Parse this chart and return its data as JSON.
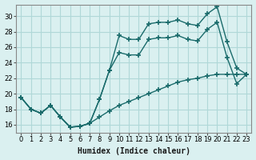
{
  "xlabel": "Humidex (Indice chaleur)",
  "ylabel": "",
  "bg_color": "#daf0f0",
  "line_color": "#1a6b6b",
  "grid_color": "#b0d8d8",
  "xlim": [
    -0.5,
    23.5
  ],
  "ylim": [
    15,
    31.5
  ],
  "xticks": [
    0,
    1,
    2,
    3,
    4,
    5,
    6,
    7,
    8,
    9,
    10,
    11,
    12,
    13,
    14,
    15,
    16,
    17,
    18,
    19,
    20,
    21,
    22,
    23
  ],
  "yticks": [
    16,
    18,
    20,
    22,
    24,
    26,
    28,
    30
  ],
  "line1_x": [
    0,
    1,
    2,
    3,
    4,
    5,
    6,
    7,
    8,
    9,
    10,
    11,
    12,
    13,
    14,
    15,
    16,
    17,
    18,
    19,
    20,
    21,
    22,
    23
  ],
  "line1_y": [
    19.5,
    18.0,
    17.5,
    18.5,
    17.0,
    15.7,
    15.8,
    16.2,
    19.3,
    23.0,
    27.5,
    27.0,
    27.0,
    29.0,
    29.2,
    29.2,
    29.5,
    29.0,
    28.8,
    30.3,
    31.2,
    26.7,
    23.3,
    22.5
  ],
  "line2_x": [
    0,
    1,
    2,
    3,
    4,
    5,
    6,
    7,
    8,
    9,
    10,
    11,
    12,
    13,
    14,
    15,
    16,
    17,
    18,
    19,
    20,
    21,
    22,
    23
  ],
  "line2_y": [
    19.5,
    18.0,
    17.5,
    18.5,
    17.0,
    15.7,
    15.8,
    16.2,
    19.3,
    23.0,
    25.3,
    25.0,
    25.0,
    27.0,
    27.2,
    27.2,
    27.5,
    27.0,
    26.8,
    28.3,
    29.2,
    24.7,
    21.3,
    22.5
  ],
  "line3_x": [
    0,
    1,
    2,
    3,
    4,
    5,
    6,
    7,
    8,
    9,
    10,
    11,
    12,
    13,
    14,
    15,
    16,
    17,
    18,
    19,
    20,
    21,
    22,
    23
  ],
  "line3_y": [
    19.5,
    18.0,
    17.5,
    18.5,
    17.0,
    15.7,
    15.8,
    16.2,
    17.0,
    17.8,
    18.5,
    19.0,
    19.5,
    20.0,
    20.5,
    21.0,
    21.5,
    21.8,
    22.0,
    22.3,
    22.5,
    22.5,
    22.5,
    22.5
  ]
}
